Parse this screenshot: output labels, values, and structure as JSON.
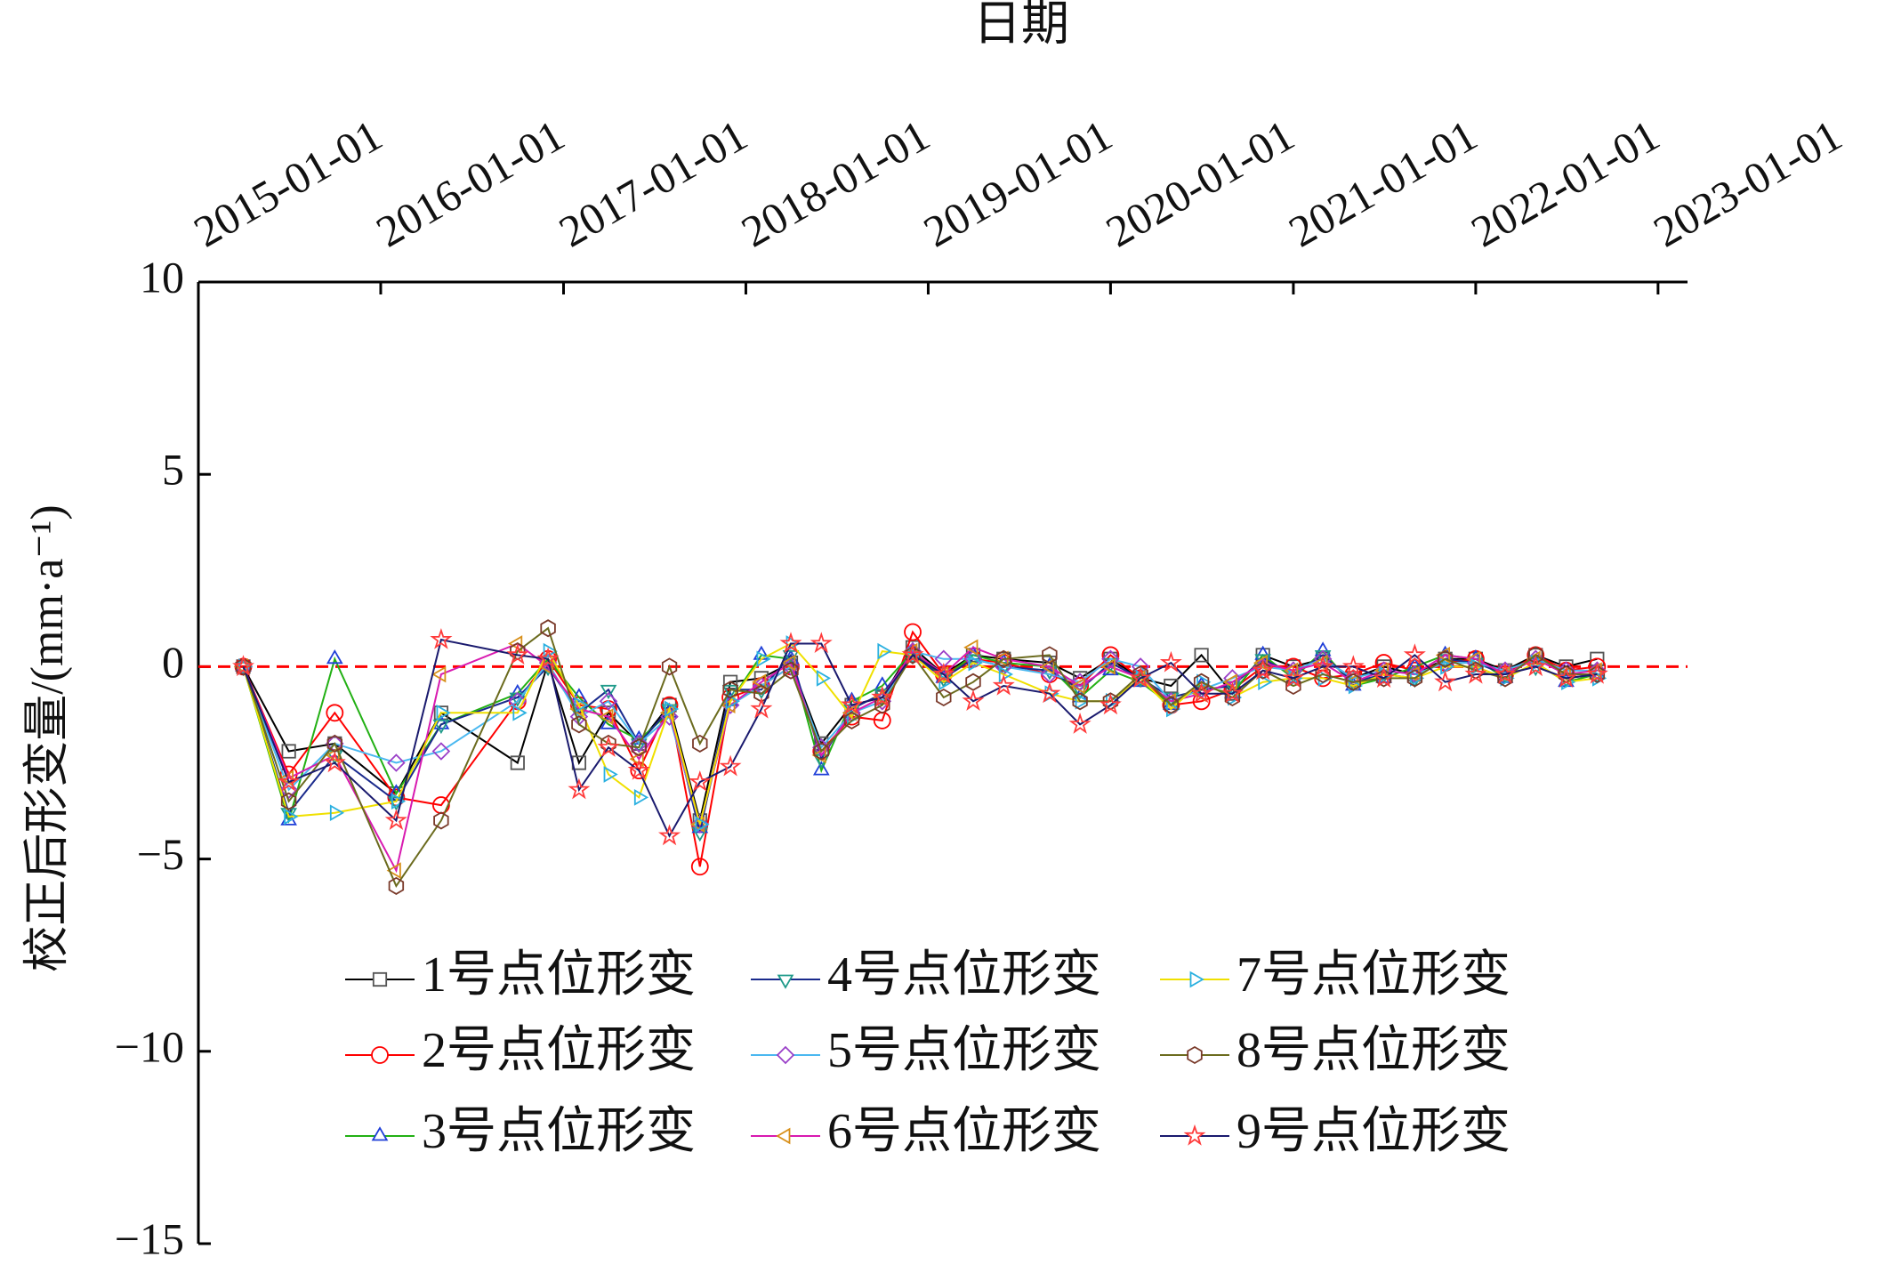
{
  "chart_data": {
    "type": "line",
    "title": "日期",
    "y_label": "校正后形变量/(mm·a⁻¹)",
    "x_axis_position": "top",
    "xlim": [
      "2015-01-01",
      "2023-03-01"
    ],
    "xticks": [
      "2015-01-01",
      "2016-01-01",
      "2017-01-01",
      "2018-01-01",
      "2019-01-01",
      "2020-01-01",
      "2021-01-01",
      "2022-01-01",
      "2023-01-01"
    ],
    "ylim": [
      -15,
      10
    ],
    "yticks": [
      {
        "value": -15,
        "label": "−15"
      },
      {
        "value": -10,
        "label": "−10"
      },
      {
        "value": -5,
        "label": "−5"
      },
      0,
      5,
      10
    ],
    "reference_line": {
      "value": 0,
      "color": "#ff0000"
    },
    "legend_position": "lower center",
    "x": [
      "2015-04-01",
      "2015-07-01",
      "2015-10-01",
      "2016-02-01",
      "2016-05-01",
      "2016-10-01",
      "2016-12-01",
      "2017-02-01",
      "2017-04-01",
      "2017-06-01",
      "2017-08-01",
      "2017-10-01",
      "2017-12-01",
      "2018-02-01",
      "2018-04-01",
      "2018-06-01",
      "2018-08-01",
      "2018-10-01",
      "2018-12-01",
      "2019-02-01",
      "2019-04-01",
      "2019-06-01",
      "2019-09-01",
      "2019-11-01",
      "2020-01-01",
      "2020-03-01",
      "2020-05-01",
      "2020-07-01",
      "2020-09-01",
      "2020-11-01",
      "2021-01-01",
      "2021-03-01",
      "2021-05-01",
      "2021-07-01",
      "2021-09-01",
      "2021-11-01",
      "2022-01-01",
      "2022-03-01",
      "2022-05-01",
      "2022-07-01",
      "2022-09-01"
    ],
    "series": [
      {
        "name": "1号点位形变",
        "color": "#000000",
        "marker": "square",
        "marker_color": "#555555",
        "values": [
          0,
          -2.2,
          -2.0,
          -3.3,
          -1.2,
          -2.5,
          0.1,
          -2.5,
          -1.2,
          -2.0,
          -1.0,
          -4.0,
          -0.4,
          -0.3,
          0.1,
          -2.0,
          -1.0,
          -0.8,
          0.5,
          -0.2,
          0.3,
          0.2,
          0.1,
          -0.3,
          0.2,
          -0.3,
          -0.5,
          0.3,
          -0.7,
          0.3,
          0.0,
          0.2,
          -0.3,
          0.0,
          -0.2,
          0.2,
          0.2,
          -0.1,
          0.3,
          0.0,
          0.2
        ]
      },
      {
        "name": "2号点位形变",
        "color": "#ff0000",
        "marker": "circle",
        "marker_color": "#ff0000",
        "values": [
          0,
          -2.8,
          -1.2,
          -3.4,
          -3.6,
          -0.9,
          0.2,
          -1.0,
          -1.1,
          -2.7,
          -1.0,
          -5.2,
          -0.8,
          -0.5,
          0.0,
          -2.2,
          -1.3,
          -1.4,
          0.9,
          -0.2,
          0.2,
          0.1,
          -0.2,
          -0.5,
          0.3,
          -0.3,
          -1.0,
          -0.9,
          -0.6,
          0.0,
          0.0,
          -0.3,
          -0.2,
          0.1,
          -0.1,
          0.1,
          0.2,
          -0.2,
          0.3,
          -0.1,
          0.0
        ]
      },
      {
        "name": "3号点位形变",
        "color": "#22b014",
        "marker": "triangle-up",
        "marker_color": "#1f3fd8",
        "values": [
          0,
          -4.0,
          0.2,
          -3.3,
          -1.5,
          -0.7,
          0.2,
          -0.8,
          -1.5,
          -1.9,
          -1.2,
          -4.2,
          -0.9,
          0.3,
          0.2,
          -2.7,
          -0.9,
          -0.5,
          0.4,
          -0.3,
          0.3,
          0.1,
          0.0,
          -0.8,
          -0.1,
          -0.4,
          -1.0,
          -0.5,
          -0.7,
          0.3,
          -0.3,
          0.4,
          -0.5,
          -0.3,
          0.0,
          0.3,
          0.2,
          -0.3,
          0.1,
          -0.4,
          -0.2
        ]
      },
      {
        "name": "4号点位形变",
        "color": "#1a2a8c",
        "marker": "triangle-down",
        "marker_color": "#1f9a8a",
        "values": [
          0,
          -3.8,
          -2.3,
          -3.5,
          -1.5,
          -0.8,
          0.0,
          -1.2,
          -0.6,
          -2.0,
          -1.1,
          -4.3,
          -0.6,
          -0.6,
          0.3,
          -2.4,
          -1.1,
          -0.7,
          0.3,
          -0.3,
          0.2,
          0.0,
          -0.1,
          -0.6,
          0.1,
          -0.3,
          -0.8,
          -0.6,
          -0.5,
          0.2,
          -0.2,
          0.3,
          -0.4,
          -0.2,
          -0.3,
          0.2,
          0.1,
          -0.2,
          0.0,
          -0.3,
          -0.2
        ]
      },
      {
        "name": "5号点位形变",
        "color": "#4ab8f0",
        "marker": "diamond",
        "marker_color": "#9a3fc8",
        "values": [
          0,
          -3.2,
          -2.0,
          -2.5,
          -2.2,
          -0.9,
          0.1,
          -1.3,
          -0.9,
          -2.0,
          -1.3,
          -4.1,
          -1.0,
          -0.5,
          0.0,
          -2.1,
          -1.2,
          -0.9,
          0.4,
          0.2,
          0.2,
          0.0,
          -0.2,
          -0.4,
          0.2,
          0.0,
          -0.9,
          -0.6,
          -0.3,
          0.0,
          -0.1,
          0.2,
          -0.3,
          -0.1,
          -0.2,
          0.1,
          0.1,
          -0.1,
          0.2,
          -0.1,
          -0.1
        ]
      },
      {
        "name": "6号点位形变",
        "color": "#d81ab0",
        "marker": "triangle-left",
        "marker_color": "#d8901a",
        "values": [
          0,
          -2.9,
          -2.3,
          -5.3,
          -0.2,
          0.6,
          0.0,
          -1.1,
          -1.3,
          -2.4,
          -1.2,
          -4.1,
          -1.0,
          -0.4,
          0.1,
          -2.3,
          -1.2,
          -0.8,
          0.4,
          -0.2,
          0.5,
          0.2,
          0.0,
          -0.5,
          0.0,
          -0.3,
          -0.9,
          -0.7,
          -0.4,
          0.1,
          -0.1,
          0.1,
          -0.4,
          -0.1,
          -0.2,
          0.3,
          0.2,
          -0.2,
          0.2,
          -0.2,
          -0.1
        ]
      },
      {
        "name": "7号点位形变",
        "color": "#f0e000",
        "marker": "triangle-right",
        "marker_color": "#2ab0e0",
        "values": [
          0,
          -3.9,
          -3.8,
          -3.5,
          -1.2,
          -1.2,
          0.4,
          -1.0,
          -2.8,
          -3.4,
          -1.1,
          -4.1,
          -0.9,
          0.2,
          0.6,
          -0.3,
          -1.3,
          0.4,
          0.3,
          -0.4,
          0.1,
          -0.2,
          -0.7,
          -0.9,
          -0.9,
          -0.3,
          -1.1,
          -0.4,
          -0.8,
          -0.4,
          -0.3,
          -0.3,
          -0.5,
          -0.2,
          -0.3,
          0.0,
          0.0,
          -0.3,
          0.1,
          -0.4,
          -0.3
        ]
      },
      {
        "name": "8号点位形变",
        "color": "#6b6b1e",
        "marker": "hexagon",
        "marker_color": "#7a3a2a",
        "values": [
          0,
          -3.5,
          -2.0,
          -5.7,
          -4.0,
          0.4,
          1.0,
          -1.5,
          -2.0,
          -2.1,
          0.0,
          -2.0,
          -0.6,
          -0.7,
          -0.1,
          -2.2,
          -1.4,
          -1.0,
          0.3,
          -0.8,
          -0.4,
          0.2,
          0.3,
          -0.9,
          -0.9,
          -0.2,
          -1.0,
          -0.4,
          -0.8,
          -0.1,
          -0.5,
          -0.2,
          -0.4,
          -0.3,
          -0.3,
          0.2,
          -0.1,
          -0.3,
          0.3,
          -0.2,
          -0.2
        ]
      },
      {
        "name": "9号点位形变",
        "color": "#1a1a6e",
        "marker": "star",
        "marker_color": "#ff3b3b",
        "values": [
          0,
          -3.0,
          -2.5,
          -4.0,
          0.7,
          0.3,
          0.2,
          -3.2,
          -2.1,
          -2.7,
          -4.4,
          -3.0,
          -2.6,
          -1.1,
          0.6,
          0.6,
          -1.0,
          -0.8,
          0.3,
          -0.2,
          -0.9,
          -0.5,
          -0.7,
          -1.5,
          -1.0,
          -0.3,
          0.1,
          -0.7,
          -0.7,
          -0.1,
          -0.3,
          0.0,
          0.0,
          -0.3,
          0.3,
          -0.4,
          -0.2,
          -0.2,
          0.0,
          -0.3,
          -0.2
        ]
      }
    ]
  }
}
